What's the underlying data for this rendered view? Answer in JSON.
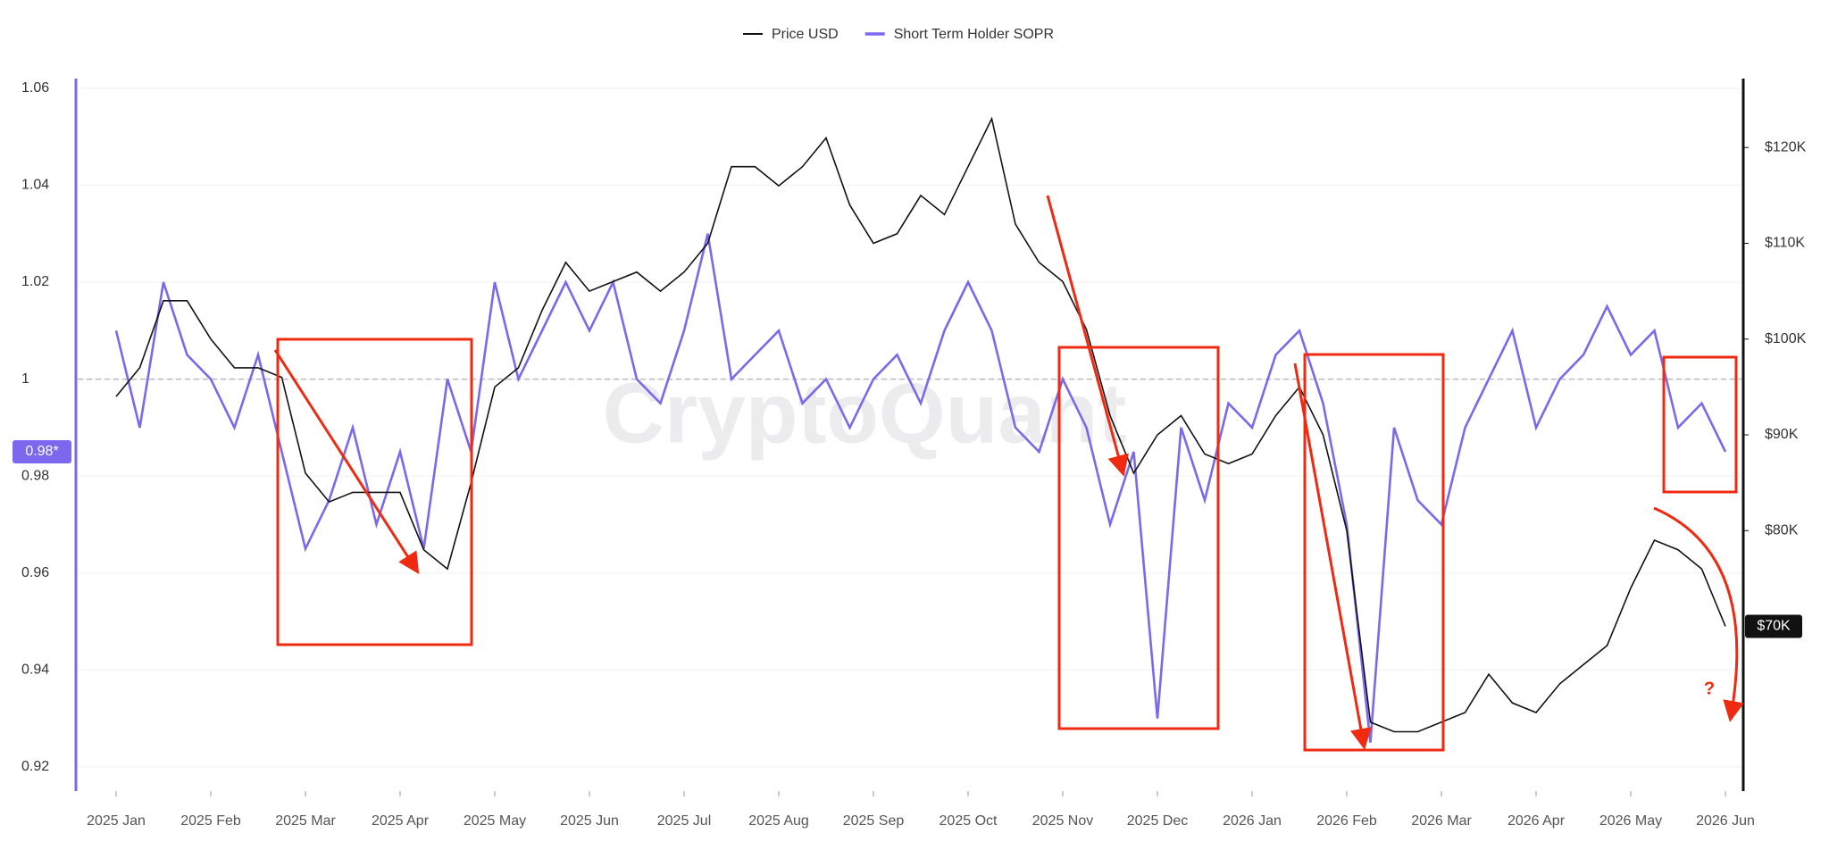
{
  "chart_data": {
    "type": "line",
    "watermark": "CryptoQuant",
    "categories": [
      "2025 Jan",
      null,
      null,
      null,
      "2025 Feb",
      null,
      null,
      null,
      "2025 Mar",
      null,
      null,
      null,
      "2025 Apr",
      null,
      null,
      null,
      "2025 May",
      null,
      null,
      null,
      "2025 Jun",
      null,
      null,
      null,
      "2025 Jul",
      null,
      null,
      null,
      "2025 Aug",
      null,
      null,
      null,
      "2025 Sep",
      null,
      null,
      null,
      "2025 Oct",
      null,
      null,
      null,
      "2025 Nov",
      null,
      null,
      null,
      "2025 Dec",
      null,
      null,
      null,
      "2026 Jan",
      null,
      null,
      null,
      "2026 Feb",
      null,
      null,
      null,
      "2026 Mar",
      null,
      null,
      null,
      "2026 Apr",
      null,
      null,
      null,
      "2026 May",
      null,
      null,
      null,
      "2026 Jun"
    ],
    "series": [
      {
        "name": "Price USD",
        "color": "#111111",
        "axis": "y2",
        "current_label": "$70K",
        "values": [
          94000,
          97000,
          104000,
          104000,
          100000,
          97000,
          97000,
          96000,
          86000,
          83000,
          84000,
          84000,
          84000,
          78000,
          76000,
          85000,
          95000,
          97000,
          103000,
          108000,
          105000,
          106000,
          107000,
          105000,
          107000,
          110000,
          118000,
          118000,
          116000,
          118000,
          121000,
          114000,
          110000,
          111000,
          115000,
          113000,
          118000,
          123000,
          112000,
          108000,
          106000,
          101000,
          92000,
          86000,
          90000,
          92000,
          88000,
          87000,
          88000,
          92000,
          95000,
          90000,
          80000,
          60000,
          59000,
          59000,
          60000,
          61000,
          65000,
          62000,
          61000,
          64000,
          66000,
          68000,
          74000,
          79000,
          78000,
          76000,
          70000
        ]
      },
      {
        "name": "Short Term Holder SOPR",
        "color": "#7b68ee",
        "axis": "y",
        "current_label": "0.98*",
        "values": [
          1.01,
          0.99,
          1.02,
          1.005,
          1.0,
          0.99,
          1.005,
          0.985,
          0.965,
          0.975,
          0.99,
          0.97,
          0.985,
          0.965,
          1.0,
          0.985,
          1.02,
          1.0,
          1.01,
          1.02,
          1.01,
          1.02,
          1.0,
          0.995,
          1.01,
          1.03,
          1.0,
          1.005,
          1.01,
          0.995,
          1.0,
          0.99,
          1.0,
          1.005,
          0.995,
          1.01,
          1.02,
          1.01,
          0.99,
          0.985,
          1.0,
          0.99,
          0.97,
          0.985,
          0.93,
          0.99,
          0.975,
          0.995,
          0.99,
          1.005,
          1.01,
          0.995,
          0.97,
          0.925,
          0.99,
          0.975,
          0.97,
          0.99,
          1.0,
          1.01,
          0.99,
          1.0,
          1.005,
          1.015,
          1.005,
          1.01,
          0.99,
          0.995,
          0.985
        ]
      }
    ],
    "ylim": [
      0.915,
      1.062
    ],
    "yticks": [
      0.92,
      0.94,
      0.96,
      0.98,
      1,
      1.02,
      1.04,
      1.06
    ],
    "y2lim": [
      52800,
      127200
    ],
    "y2ticks": [
      {
        "value": 80000,
        "label": "$80K"
      },
      {
        "value": 90000,
        "label": "$90K"
      },
      {
        "value": 100000,
        "label": "$100K"
      },
      {
        "value": 110000,
        "label": "$110K"
      },
      {
        "value": 120000,
        "label": "$120K"
      }
    ],
    "reference_line": 1,
    "grid": true,
    "legend": "top",
    "annotations": [
      "?"
    ]
  }
}
